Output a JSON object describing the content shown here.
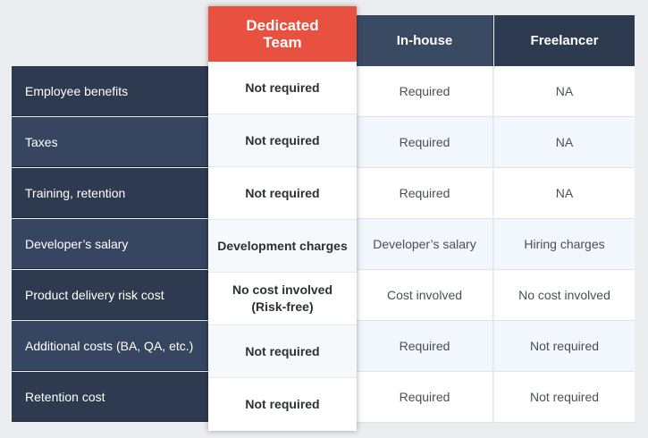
{
  "columns": {
    "dedicated": "Dedicated Team",
    "inhouse": "In-house",
    "freelancer": "Freelancer"
  },
  "rows": [
    {
      "label": "Employee benefits",
      "dedicated": "Not required",
      "inhouse": "Required",
      "freelancer": "NA"
    },
    {
      "label": "Taxes",
      "dedicated": "Not required",
      "inhouse": "Required",
      "freelancer": "NA"
    },
    {
      "label": "Training, retention",
      "dedicated": "Not required",
      "inhouse": "Required",
      "freelancer": "NA"
    },
    {
      "label": "Developer’s salary",
      "dedicated": "Development charges",
      "inhouse": "Developer’s salary",
      "freelancer": "Hiring charges"
    },
    {
      "label": "Product delivery risk cost",
      "dedicated": "No cost involved (Risk-free)",
      "inhouse": "Cost involved",
      "freelancer": "No cost involved"
    },
    {
      "label": "Additional costs (BA, QA, etc.)",
      "dedicated": "Not required",
      "inhouse": "Required",
      "freelancer": "Not required"
    },
    {
      "label": "Retention cost",
      "dedicated": "Not required",
      "inhouse": "Required",
      "freelancer": "Not required"
    }
  ],
  "colors": {
    "dedicated_header": "#e8503f",
    "header_dark": "#2d3a4f",
    "row_label_dark": "#2d3a4f",
    "row_label_mid": "#364660",
    "page_background": "#ebedf0"
  }
}
